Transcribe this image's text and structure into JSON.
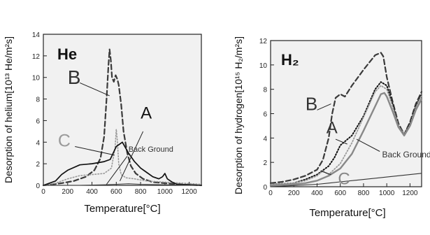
{
  "chart_data": [
    {
      "type": "line",
      "panel_label": "He",
      "xlabel": "Temperature[°C]",
      "ylabel": "Desorption of helium[10¹³ He/m²s]",
      "xlim": [
        0,
        1300
      ],
      "ylim": [
        0,
        14
      ],
      "xticks": [
        0,
        200,
        400,
        600,
        800,
        1000,
        1200
      ],
      "yticks": [
        0,
        2,
        4,
        6,
        8,
        10,
        12,
        14
      ],
      "grid": false,
      "series": [
        {
          "name": "B",
          "style": "dashed",
          "color": "#3a3a3a",
          "width": 2.2,
          "x": [
            0,
            80,
            150,
            250,
            350,
            420,
            470,
            500,
            520,
            535,
            545,
            555,
            565,
            580,
            595,
            610,
            620,
            640,
            660,
            690,
            720,
            760,
            820,
            900,
            1000,
            1100,
            1200,
            1300
          ],
          "y": [
            0,
            0.1,
            0.2,
            0.4,
            0.8,
            1.4,
            2.5,
            4.5,
            8,
            11,
            12.6,
            11.6,
            10,
            9.6,
            10.2,
            9.8,
            9.3,
            7.5,
            5,
            3,
            1.8,
            1.1,
            0.6,
            0.3,
            0.2,
            0.1,
            0.05,
            0
          ]
        },
        {
          "name": "C",
          "style": "dotted",
          "color": "#9a9a9a",
          "width": 1.6,
          "x": [
            0,
            100,
            200,
            300,
            400,
            500,
            560,
            590,
            600,
            610,
            620,
            640,
            680,
            750,
            850,
            1000,
            1300
          ],
          "y": [
            0,
            0.2,
            0.6,
            0.9,
            1.0,
            1.1,
            1.6,
            3.5,
            5.2,
            4.0,
            2.0,
            1.0,
            0.7,
            0.6,
            0.4,
            0.3,
            0.1
          ]
        },
        {
          "name": "A",
          "style": "solid",
          "color": "#111111",
          "width": 1.7,
          "x": [
            0,
            100,
            150,
            200,
            300,
            400,
            450,
            500,
            550,
            600,
            650,
            700,
            750,
            800,
            850,
            900,
            950,
            980,
            1000,
            1020,
            1060,
            1100,
            1300
          ],
          "y": [
            0,
            0.4,
            1.0,
            1.4,
            1.9,
            2.0,
            2.1,
            2.2,
            2.4,
            3.6,
            4.0,
            3.0,
            2.2,
            1.6,
            1.2,
            0.8,
            0.6,
            0.8,
            1.1,
            0.6,
            0.3,
            0.1,
            0
          ]
        },
        {
          "name": "Back Ground",
          "style": "solid",
          "color": "#444444",
          "width": 1.1,
          "x": [
            0,
            300,
            500,
            600,
            700,
            800,
            1000,
            1300
          ],
          "y": [
            0,
            0,
            0.05,
            0.1,
            0.15,
            0.1,
            0.05,
            0
          ]
        }
      ],
      "annotations": [
        {
          "text": "B",
          "x": 200,
          "y": 9.4,
          "size": 28,
          "color": "#333333",
          "weight": "normal",
          "leader": [
            [
              300,
              9.5
            ],
            [
              545,
              8.3
            ]
          ]
        },
        {
          "text": "A",
          "x": 800,
          "y": 6.2,
          "size": 24,
          "color": "#111111",
          "weight": "normal",
          "leader": [
            [
              820,
              5.0
            ],
            [
              630,
              0.4
            ]
          ]
        },
        {
          "text": "C",
          "x": 120,
          "y": 3.6,
          "size": 25,
          "color": "#9a9a9a",
          "weight": "normal",
          "leader": [
            [
              260,
              3.6
            ],
            [
              585,
              2.8
            ]
          ]
        },
        {
          "text": "Back Ground",
          "x": 700,
          "y": 3.1,
          "size": 11,
          "color": "#333333",
          "weight": "normal",
          "leader": [
            [
              690,
              2.7
            ],
            [
              520,
              0.1
            ]
          ]
        }
      ]
    },
    {
      "type": "line",
      "panel_label": "H₂",
      "xlabel": "Temperature[°C]",
      "ylabel": "Desorption of hydrogen[10¹⁵ H₂/m²s]",
      "xlim": [
        0,
        1300
      ],
      "ylim": [
        0,
        12
      ],
      "xticks": [
        0,
        200,
        400,
        600,
        800,
        1000,
        1200
      ],
      "yticks": [
        0,
        2,
        4,
        6,
        8,
        10,
        12
      ],
      "grid": false,
      "series": [
        {
          "name": "B",
          "style": "dashed",
          "color": "#3a3a3a",
          "width": 2.2,
          "x": [
            0,
            100,
            200,
            300,
            400,
            450,
            500,
            530,
            560,
            600,
            640,
            700,
            800,
            900,
            950,
            970,
            1000,
            1050,
            1100,
            1150,
            1200,
            1250,
            1300
          ],
          "y": [
            0.3,
            0.4,
            0.6,
            0.9,
            1.4,
            2.2,
            4.0,
            6.0,
            7.3,
            7.6,
            7.4,
            8.3,
            9.6,
            10.8,
            11.0,
            10.7,
            9.0,
            7.0,
            5.2,
            4.3,
            5.3,
            6.8,
            7.8
          ]
        },
        {
          "name": "A",
          "style": "dotted",
          "color": "#111111",
          "width": 2.0,
          "x": [
            0,
            200,
            300,
            400,
            500,
            550,
            600,
            650,
            700,
            800,
            900,
            950,
            1000,
            1050,
            1100,
            1150,
            1200,
            1250,
            1300
          ],
          "y": [
            0.2,
            0.3,
            0.6,
            1.0,
            1.7,
            2.4,
            3.4,
            3.8,
            4.2,
            5.8,
            8.0,
            8.6,
            8.3,
            6.8,
            5.0,
            4.3,
            5.2,
            6.6,
            7.6
          ]
        },
        {
          "name": "",
          "style": "dotted",
          "color": "#9a9a9a",
          "width": 1.8,
          "x": [
            0,
            200,
            300,
            400,
            450,
            500,
            600,
            700,
            800,
            900,
            950,
            1000,
            1050,
            1100,
            1150,
            1200,
            1250,
            1300
          ],
          "y": [
            0.2,
            0.3,
            0.5,
            0.9,
            1.3,
            1.0,
            1.9,
            3.6,
            5.7,
            7.8,
            8.3,
            8.0,
            6.6,
            5.0,
            4.3,
            5.1,
            6.5,
            7.5
          ]
        },
        {
          "name": "C",
          "style": "solid",
          "color": "#888888",
          "width": 2.4,
          "x": [
            0,
            200,
            300,
            400,
            500,
            600,
            700,
            800,
            900,
            950,
            980,
            1000,
            1050,
            1100,
            1150,
            1200,
            1250,
            1300
          ],
          "y": [
            0.1,
            0.2,
            0.3,
            0.5,
            0.9,
            1.5,
            2.7,
            4.6,
            6.6,
            7.6,
            7.7,
            7.4,
            6.2,
            4.9,
            4.2,
            5.0,
            6.3,
            7.2
          ]
        },
        {
          "name": "Back Ground",
          "style": "solid",
          "color": "#333333",
          "width": 1.1,
          "x": [
            0,
            200,
            400,
            500,
            600,
            800,
            1000,
            1200,
            1300
          ],
          "y": [
            0,
            0.1,
            0.2,
            0.3,
            0.4,
            0.6,
            0.8,
            1.0,
            1.1
          ]
        }
      ],
      "annotations": [
        {
          "text": "B",
          "x": 300,
          "y": 6.3,
          "size": 26,
          "color": "#333333",
          "weight": "normal",
          "leader": [
            [
              400,
              6.3
            ],
            [
              520,
              6.8
            ]
          ]
        },
        {
          "text": "A",
          "x": 480,
          "y": 4.4,
          "size": 24,
          "color": "#333333",
          "weight": "normal",
          "leader": [
            [
              560,
              3.9
            ],
            [
              660,
              3.5
            ]
          ]
        },
        {
          "text": "C",
          "x": 580,
          "y": 0.2,
          "size": 24,
          "color": "#888888",
          "weight": "normal",
          "leader": [
            [
              520,
              1.0
            ],
            [
              430,
              1.3
            ]
          ]
        },
        {
          "text": "Back Ground",
          "x": 960,
          "y": 2.4,
          "size": 12,
          "color": "#333333",
          "weight": "normal",
          "leader": [
            [
              940,
              2.9
            ],
            [
              740,
              3.9
            ]
          ]
        }
      ]
    }
  ]
}
